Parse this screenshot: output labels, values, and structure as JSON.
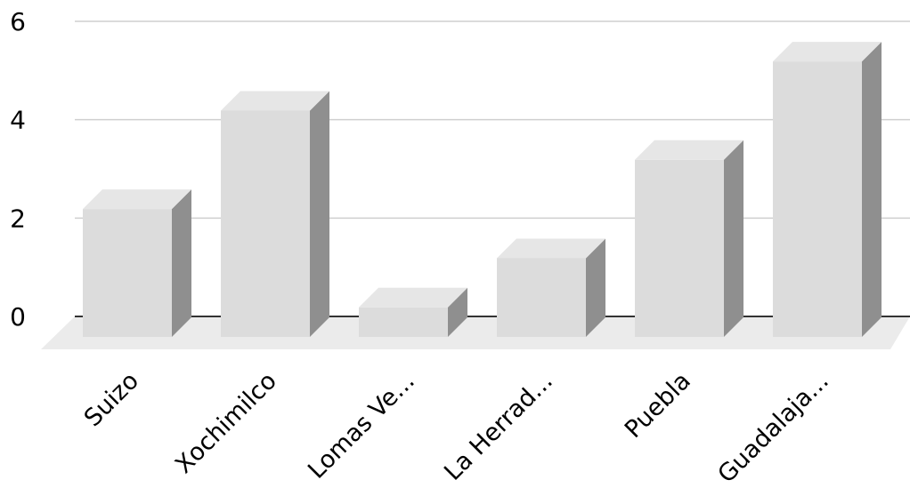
{
  "chart_data": {
    "type": "bar",
    "style": "3d-column",
    "categories": [
      "Suizo",
      "Xochimilco",
      "Lomas Ve...",
      "La Herrad...",
      "Puebla",
      "Guadalaja..."
    ],
    "series": [
      {
        "values": [
          2.6,
          4.6,
          0.6,
          1.6,
          3.6,
          5.6
        ]
      }
    ],
    "title": "",
    "xlabel": "",
    "ylabel": "",
    "ylim": [
      0,
      6
    ],
    "yticks": [
      0,
      2,
      4,
      6
    ],
    "grid": true,
    "legend": "none",
    "colors": {
      "bar_front": "#dcdcdc",
      "bar_top": "#e6e6e6",
      "bar_side": "#8f8f8f",
      "floor": "#ebebeb",
      "gridline": "#cfcfcf",
      "baseline": "#333333"
    }
  }
}
